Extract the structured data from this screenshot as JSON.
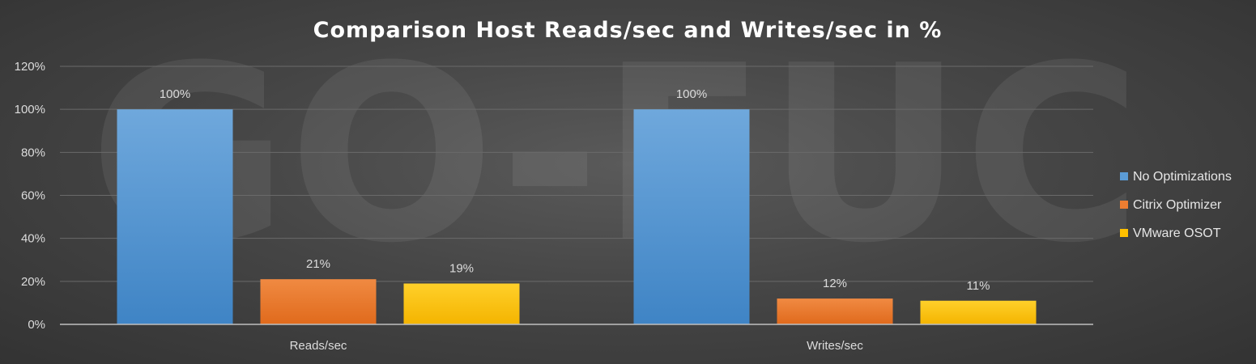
{
  "chart_data": {
    "type": "bar",
    "title": "Comparison Host Reads/sec and Writes/sec in %",
    "categories": [
      "Reads/sec",
      "Writes/sec"
    ],
    "series": [
      {
        "name": "No Optimizations",
        "values": [
          100,
          100
        ],
        "labels": [
          "100%",
          "100%"
        ],
        "color": "#5b9bd5"
      },
      {
        "name": "Citrix Optimizer",
        "values": [
          21,
          12
        ],
        "labels": [
          "21%",
          "12%"
        ],
        "color": "#ed7d31"
      },
      {
        "name": "VMware OSOT",
        "values": [
          19,
          11
        ],
        "labels": [
          "19%",
          "11%"
        ],
        "color": "#ffc000"
      }
    ],
    "yticks": [
      "0%",
      "20%",
      "40%",
      "60%",
      "80%",
      "100%",
      "120%"
    ],
    "ylim": [
      0,
      120
    ],
    "xlabel": "",
    "ylabel": "",
    "grid": true,
    "legend_position": "right",
    "watermark": "GO-EUC"
  }
}
